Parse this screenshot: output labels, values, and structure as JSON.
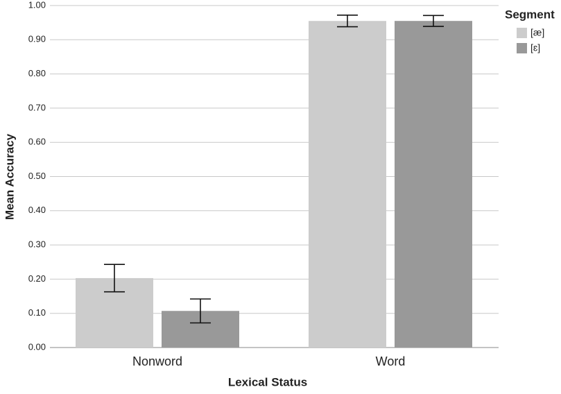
{
  "chart_data": {
    "type": "bar",
    "x_label": "Lexical Status",
    "y_label": "Mean Accuracy",
    "legend_title": "Segment",
    "legend_position": "right",
    "categories": [
      "Nonword",
      "Word"
    ],
    "series": [
      {
        "name": "[æ]",
        "color": "#cccccc",
        "values": [
          0.203,
          0.955
        ],
        "errors": [
          0.04,
          0.017
        ]
      },
      {
        "name": "[ɛ]",
        "color": "#999999",
        "values": [
          0.107,
          0.955
        ],
        "errors": [
          0.035,
          0.016
        ]
      }
    ],
    "ylim": [
      0,
      1
    ],
    "yticks": [
      {
        "value": 0,
        "label": "0.00"
      },
      {
        "value": 0.1,
        "label": "0.10"
      },
      {
        "value": 0.2,
        "label": "0.20"
      },
      {
        "value": 0.3,
        "label": "0.30"
      },
      {
        "value": 0.4,
        "label": "0.40"
      },
      {
        "value": 0.5,
        "label": "0.50"
      },
      {
        "value": 0.6,
        "label": "0.60"
      },
      {
        "value": 0.7,
        "label": "0.70"
      },
      {
        "value": 0.8,
        "label": "0.80"
      },
      {
        "value": 0.9,
        "label": "0.90"
      },
      {
        "value": 1,
        "label": "1.00"
      }
    ],
    "grid": true
  }
}
